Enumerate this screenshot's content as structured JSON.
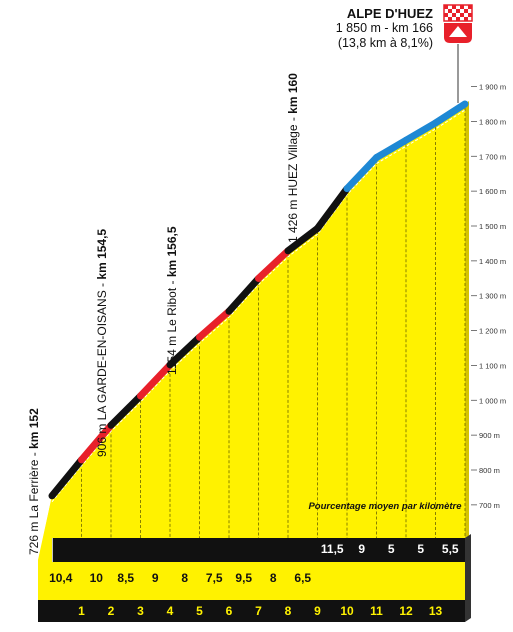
{
  "finish": {
    "name": "ALPE D'HUEZ",
    "altitude_km": "1 850 m - km 166",
    "summary": "(13,8 km à 8,1%)"
  },
  "colors": {
    "fill": "#fff200",
    "grade_black": "#111111",
    "grade_red": "#e8202a",
    "grade_blue": "#1e88d4",
    "flag_red": "#e8202a"
  },
  "icons": {
    "finish_flag": "checkered-flag-icon",
    "mountain": "mountain-icon"
  },
  "chart_data": {
    "type": "area",
    "title": "",
    "xlabel": "",
    "ylabel": "",
    "legend_note": "Pourcentage moyen par kilomètre",
    "ylim": [
      600,
      1950
    ],
    "y_ticks": [
      "700 m",
      "800 m",
      "900 m",
      "1 000 m",
      "1 100 m",
      "1 200 m",
      "1 300 m",
      "1 400 m",
      "1 500 m",
      "1 600 m",
      "1 700 m",
      "1 800 m",
      "1 900 m"
    ],
    "y_tick_values": [
      700,
      800,
      900,
      1000,
      1100,
      1200,
      1300,
      1400,
      1500,
      1600,
      1700,
      1800,
      1900
    ],
    "km_labels": [
      "1",
      "2",
      "3",
      "4",
      "5",
      "6",
      "7",
      "8",
      "9",
      "10",
      "11",
      "12",
      "13"
    ],
    "gradients": [
      "10,4",
      "10",
      "8,5",
      "9",
      "8",
      "7,5",
      "9,5",
      "8",
      "6,5",
      "11,5",
      "9",
      "5",
      "5",
      "5,5"
    ],
    "gradient_values": [
      10.4,
      10,
      8.5,
      9,
      8,
      7.5,
      9.5,
      8,
      6.5,
      11.5,
      9,
      5,
      5,
      5.5
    ],
    "grade_classes": [
      "black",
      "red",
      "black",
      "red",
      "black",
      "red",
      "black",
      "red",
      "black",
      "black",
      "blue",
      "blue",
      "blue",
      "blue"
    ],
    "start_altitude": 726,
    "end_altitude": 1850,
    "waypoints": [
      {
        "label": "726 m La Ferrière - ",
        "km_label": "km 152",
        "km": 0,
        "altitude": 726
      },
      {
        "label": "906 m  LA GARDE-EN-OISANS - ",
        "km_label": "km 154,5",
        "km": 2.5,
        "altitude": 906
      },
      {
        "label": "1154 m Le Ribot - ",
        "km_label": "km 156,5",
        "km": 4.5,
        "altitude": 1154
      },
      {
        "label": "1 426 m HUEZ Village - ",
        "km_label": "km 160",
        "km": 8,
        "altitude": 1426
      }
    ]
  }
}
